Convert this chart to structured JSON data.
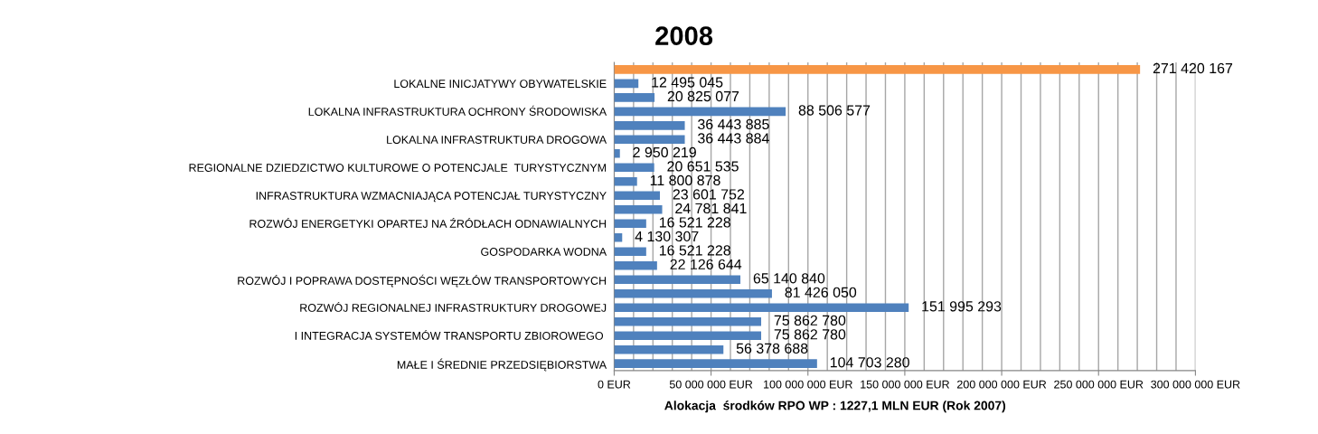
{
  "chart_data": {
    "type": "bar",
    "orientation": "horizontal",
    "title": "2008",
    "xlabel": "Alokacja  środków RPO WP : 1227,1 MLN EUR (Rok 2007)",
    "categories": [
      null,
      "LOKALNE INICJATYWY OBYWATELSKIE",
      null,
      "LOKALNA INFRASTRUKTURA OCHRONY ŚRODOWISKA",
      null,
      "LOKALNA INFRASTRUKTURA DROGOWA",
      null,
      "REGIONALNE DZIEDZICTWO KULTUROWE O POTENCJALE  TURYSTYCZNYM",
      null,
      "INFRASTRUKTURA WZMACNIAJĄCA POTENCJAŁ TURYSTYCZNY",
      null,
      "ROZWÓJ ENERGETYKI OPARTEJ NA ŹRÓDŁACH ODNAWIALNYCH",
      null,
      "GOSPODARKA WODNA",
      null,
      "ROZWÓJ I POPRAWA DOSTĘPNOŚCI WĘZŁÓW TRANSPORTOWYCH",
      null,
      "ROZWÓJ REGIONALNEJ INFRASTRUKTURY DROGOWEJ",
      null,
      "I INTEGRACJA SYSTEMÓW TRANSPORTU ZBIOROWEGO ",
      null,
      "MAŁE I ŚREDNIE PRZEDSIĘBIORSTWA"
    ],
    "values": [
      271420167,
      12495045,
      20825077,
      88506577,
      36443885,
      36443884,
      2950219,
      20651535,
      11800878,
      23601752,
      24781841,
      16521228,
      4130307,
      16521228,
      22126644,
      65140840,
      81426050,
      151995293,
      75862780,
      75862780,
      56378688,
      104703280
    ],
    "value_labels": [
      "271 420 167",
      "12 495 045",
      "20 825 077",
      "88 506 577",
      "36 443 885",
      "36 443 884",
      "2 950 219",
      "20 651 535",
      "11 800 878",
      "23 601 752",
      "24 781 841",
      "16 521 228",
      "4 130 307",
      "16 521 228",
      "22 126 644",
      "65 140 840",
      "81 426 050",
      "151 995 293",
      "75 862 780",
      "75 862 780",
      "56 378 688",
      "104 703 280"
    ],
    "colors": [
      "#f79646",
      "#4f81bd",
      "#4f81bd",
      "#4f81bd",
      "#4f81bd",
      "#4f81bd",
      "#4f81bd",
      "#4f81bd",
      "#4f81bd",
      "#4f81bd",
      "#4f81bd",
      "#4f81bd",
      "#4f81bd",
      "#4f81bd",
      "#4f81bd",
      "#4f81bd",
      "#4f81bd",
      "#4f81bd",
      "#4f81bd",
      "#4f81bd",
      "#4f81bd",
      "#4f81bd"
    ],
    "xlim": [
      0,
      300000000
    ],
    "xticks": [
      {
        "value": 0,
        "label": "0 EUR"
      },
      {
        "value": 10000000,
        "label": null
      },
      {
        "value": 20000000,
        "label": null
      },
      {
        "value": 30000000,
        "label": null
      },
      {
        "value": 40000000,
        "label": null
      },
      {
        "value": 50000000,
        "label": "50 000 000 EUR"
      },
      {
        "value": 60000000,
        "label": null
      },
      {
        "value": 70000000,
        "label": null
      },
      {
        "value": 80000000,
        "label": null
      },
      {
        "value": 90000000,
        "label": null
      },
      {
        "value": 100000000,
        "label": "100 000 000 EUR"
      },
      {
        "value": 110000000,
        "label": null
      },
      {
        "value": 120000000,
        "label": null
      },
      {
        "value": 130000000,
        "label": null
      },
      {
        "value": 140000000,
        "label": null
      },
      {
        "value": 150000000,
        "label": "150 000 000 EUR"
      },
      {
        "value": 160000000,
        "label": null
      },
      {
        "value": 170000000,
        "label": null
      },
      {
        "value": 180000000,
        "label": null
      },
      {
        "value": 190000000,
        "label": null
      },
      {
        "value": 200000000,
        "label": "200 000 000 EUR"
      },
      {
        "value": 210000000,
        "label": null
      },
      {
        "value": 220000000,
        "label": null
      },
      {
        "value": 230000000,
        "label": null
      },
      {
        "value": 240000000,
        "label": null
      },
      {
        "value": 250000000,
        "label": "250 000 000 EUR"
      },
      {
        "value": 260000000,
        "label": null
      },
      {
        "value": 270000000,
        "label": null
      },
      {
        "value": 280000000,
        "label": null
      },
      {
        "value": 290000000,
        "label": null
      },
      {
        "value": 300000000,
        "label": "300 000 000 EUR"
      }
    ],
    "grid": "x",
    "legend": false
  }
}
